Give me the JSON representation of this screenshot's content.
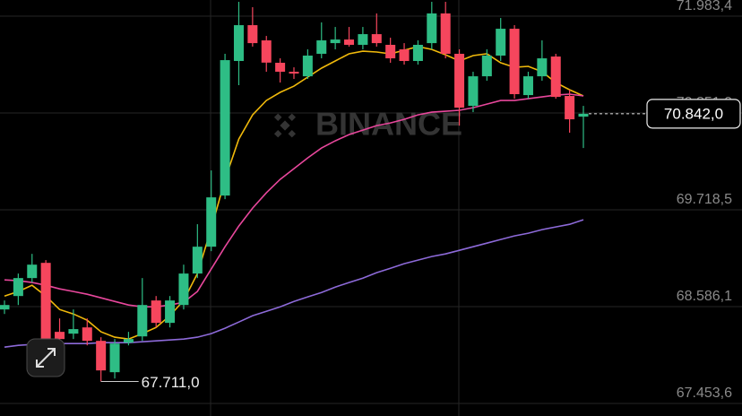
{
  "chart_data": {
    "type": "candlestick",
    "watermark": "BINANCE",
    "open": [
      68553,
      68710,
      68920,
      69098,
      68291,
      68270,
      68343,
      68186,
      67819,
      68165,
      68238,
      68658,
      68396,
      68605,
      68973,
      69287,
      69885,
      71459,
      71878,
      71700,
      71438,
      71333,
      71280,
      71543,
      71668,
      71710,
      71648,
      71773,
      71648,
      71595,
      71459,
      71668,
      72015,
      71543,
      70934,
      71280,
      71522,
      71836,
      71060,
      71280,
      71511,
      71050,
      70808
    ],
    "high": [
      68658,
      68973,
      69203,
      69130,
      68448,
      68553,
      68448,
      68228,
      68207,
      68291,
      68920,
      68710,
      68710,
      69077,
      69550,
      70179,
      71543,
      72151,
      72088,
      71752,
      71490,
      71385,
      71595,
      71910,
      71857,
      71857,
      71857,
      72015,
      71731,
      71668,
      71700,
      72151,
      72151,
      71595,
      71333,
      71595,
      71962,
      71878,
      71333,
      71700,
      71543,
      71123,
      70934
    ],
    "low": [
      68500,
      68605,
      68868,
      68028,
      68133,
      68207,
      68133,
      67711,
      67745,
      68133,
      68186,
      68343,
      68343,
      68553,
      68920,
      69235,
      69843,
      71176,
      71627,
      71333,
      71207,
      71249,
      71249,
      71490,
      71595,
      71627,
      71595,
      71627,
      71438,
      71417,
      71417,
      71595,
      71490,
      70703,
      70861,
      71228,
      71459,
      71018,
      71018,
      71228,
      71018,
      70620,
      70441
    ],
    "close": [
      68605,
      68920,
      69077,
      68186,
      68207,
      68323,
      68186,
      67840,
      68154,
      68207,
      68605,
      68396,
      68658,
      68973,
      69287,
      69864,
      71469,
      71878,
      71668,
      71440,
      71333,
      71312,
      71522,
      71700,
      71710,
      71648,
      71773,
      71668,
      71490,
      71459,
      71648,
      72015,
      71543,
      70913,
      71280,
      71522,
      71836,
      71071,
      71280,
      71490,
      71039,
      70777,
      70842
    ],
    "up_color": "#2ebd85",
    "down_color": "#f6465d",
    "lines": [
      {
        "color": "#f0b90b",
        "values": [
          68710,
          68763,
          68836,
          68710,
          68553,
          68500,
          68427,
          68291,
          68228,
          68207,
          68270,
          68343,
          68480,
          68658,
          68973,
          69497,
          70074,
          70546,
          70829,
          70997,
          71092,
          71165,
          71270,
          71375,
          71459,
          71543,
          71574,
          71564,
          71543,
          71585,
          71627,
          71595,
          71532,
          71459,
          71522,
          71543,
          71438,
          71385,
          71396,
          71333,
          71207,
          71123,
          71050
        ]
      },
      {
        "color": "#e8479c",
        "values": [
          68899,
          68889,
          68868,
          68836,
          68794,
          68763,
          68731,
          68689,
          68647,
          68605,
          68584,
          68584,
          68605,
          68637,
          68763,
          69025,
          69287,
          69529,
          69738,
          69917,
          70074,
          70200,
          70326,
          70441,
          70525,
          70598,
          70651,
          70703,
          70735,
          70777,
          70829,
          70861,
          70871,
          70882,
          70913,
          70955,
          70997,
          70997,
          71018,
          71039,
          71060,
          71071,
          71050
        ]
      },
      {
        "color": "#8d6ad9",
        "values": [
          68112,
          68133,
          68144,
          68154,
          68154,
          68154,
          68154,
          68165,
          68165,
          68165,
          68175,
          68186,
          68196,
          68207,
          68228,
          68270,
          68333,
          68406,
          68480,
          68532,
          68584,
          68647,
          68700,
          68752,
          68815,
          68868,
          68920,
          68983,
          69035,
          69088,
          69130,
          69172,
          69203,
          69245,
          69287,
          69329,
          69371,
          69413,
          69445,
          69487,
          69518,
          69549,
          69602
        ]
      }
    ],
    "ylim": [
      67306.8,
      72172.3
    ],
    "yticks": [
      {
        "value": 67453.6,
        "label": "67.453,6"
      },
      {
        "value": 68586.1,
        "label": "68.586,1"
      },
      {
        "value": 69718.5,
        "label": "69.718,5"
      },
      {
        "value": 70851.0,
        "label": "70.851,0"
      },
      {
        "value": 71983.4,
        "label": "71.983,4"
      }
    ],
    "grid": true,
    "low_marker": {
      "value": 67711,
      "label": "67.711,0"
    },
    "last_price": {
      "value": 70842,
      "label": "70.842,0"
    }
  }
}
